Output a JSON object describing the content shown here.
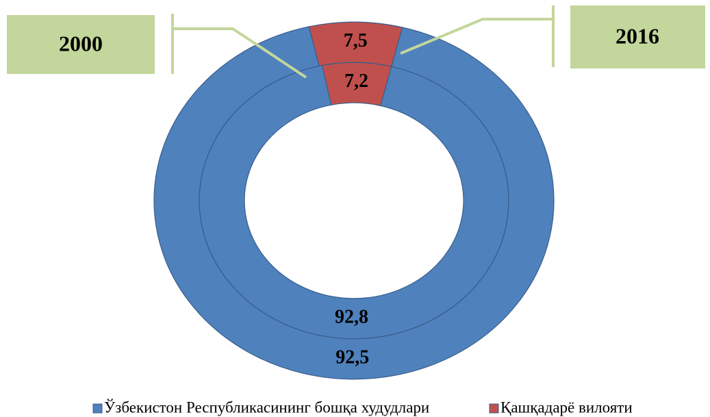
{
  "chart_data": {
    "type": "donut",
    "categories": [
      "Ўзбекистон Республикасининг бошқа худудлари",
      "Қашқадарё вилояти"
    ],
    "colors": [
      "#4f81bd",
      "#c0504d"
    ],
    "series": [
      {
        "name": "2000",
        "values": [
          92.8,
          7.2
        ],
        "value_labels": [
          "92,8",
          "7,2"
        ]
      },
      {
        "name": "2016",
        "values": [
          92.5,
          7.5
        ],
        "value_labels": [
          "92,5",
          "7,5"
        ]
      }
    ]
  }
}
